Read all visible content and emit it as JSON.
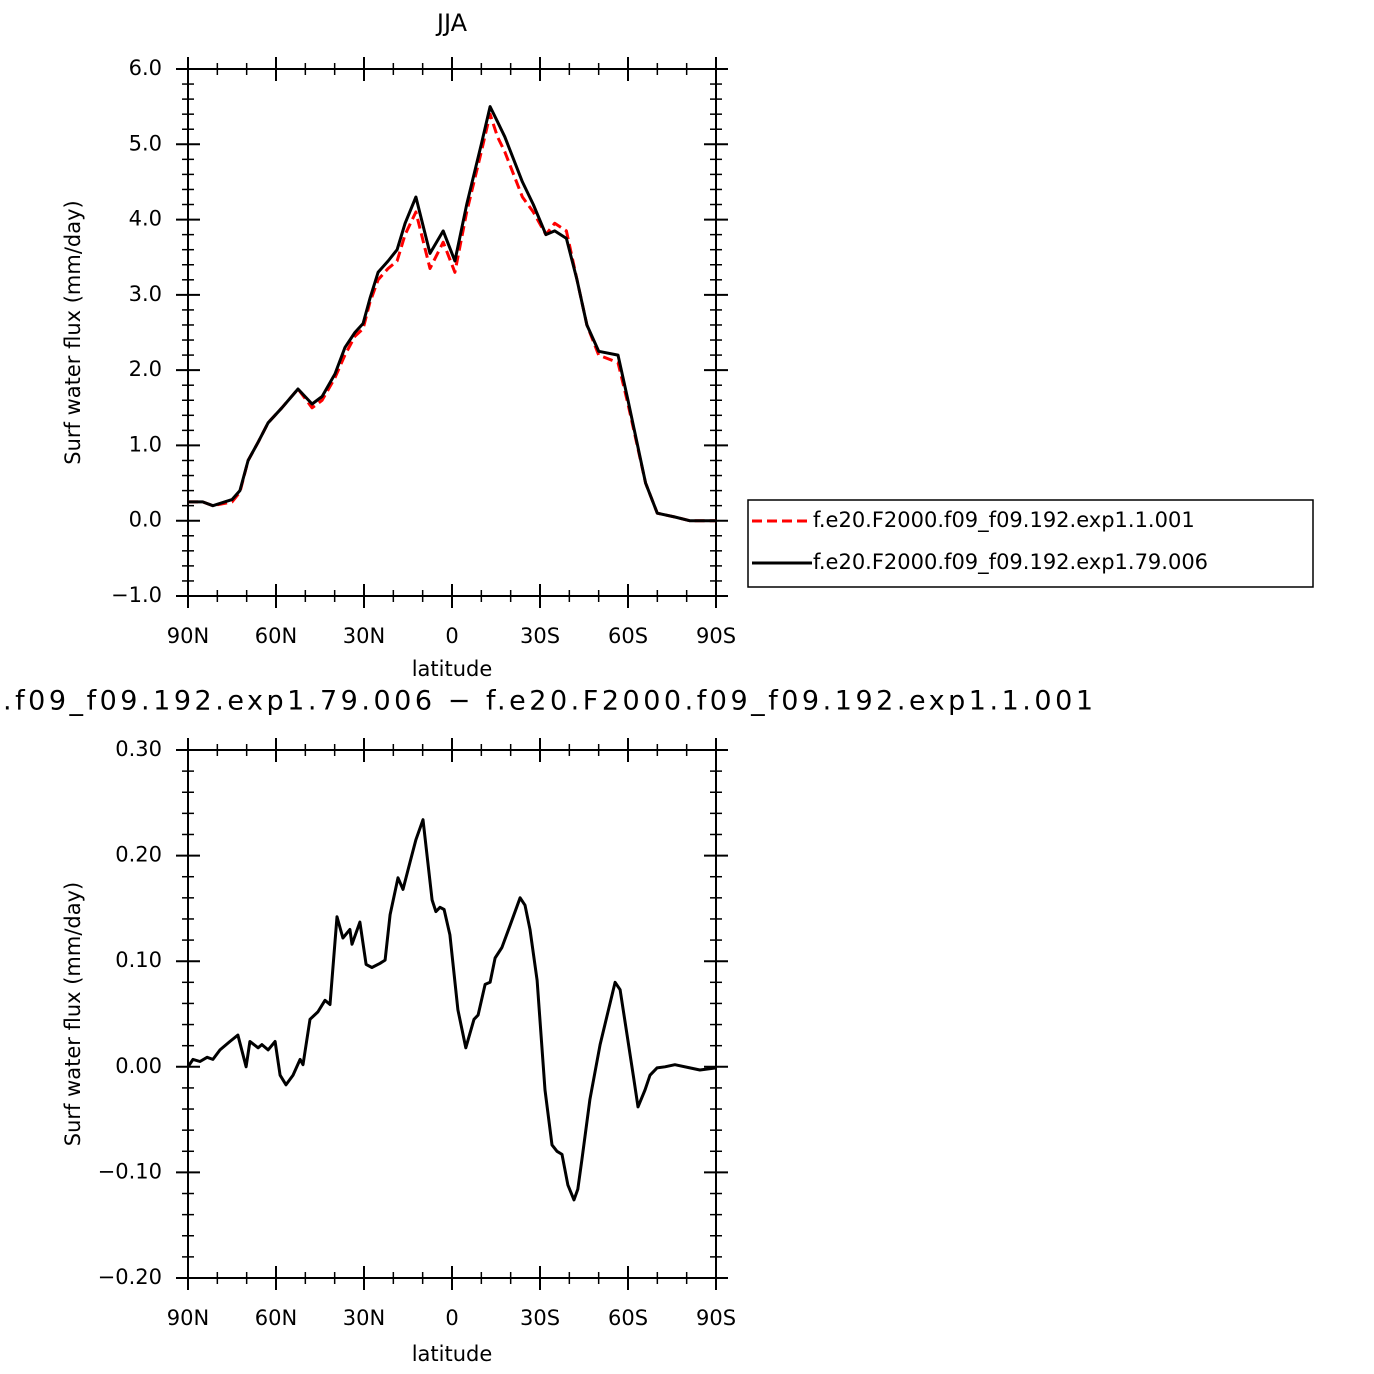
{
  "chart_data": [
    {
      "type": "line",
      "title": "JJA",
      "x": [
        90,
        85,
        81.5,
        75,
        72.3,
        69.5,
        66,
        62.7,
        58,
        52.5,
        47.7,
        44.3,
        39.9,
        36.5,
        33.1,
        30.3,
        28,
        25.2,
        21.8,
        18.7,
        16,
        12.3,
        7.5,
        3,
        -1,
        -5,
        -10,
        -13,
        -15.5,
        -18,
        -24,
        -27.7,
        -32,
        -35,
        -39,
        -42.6,
        -46,
        -50,
        -56.6,
        -60,
        -66,
        -70,
        -76,
        -81,
        -90
      ],
      "series": [
        {
          "name": "f.e20.F2000.f09_f09.192.exp1.1.001",
          "color": "#ff0000",
          "dash": "dashed",
          "values": [
            0.25,
            0.25,
            0.2,
            0.25,
            0.38,
            0.8,
            1.05,
            1.3,
            1.5,
            1.75,
            1.5,
            1.6,
            1.9,
            2.2,
            2.45,
            2.55,
            2.9,
            3.2,
            3.35,
            3.45,
            3.8,
            4.1,
            3.35,
            3.7,
            3.3,
            4.1,
            4.9,
            5.4,
            5.1,
            4.9,
            4.3,
            4.1,
            3.8,
            3.95,
            3.85,
            3.2,
            2.6,
            2.2,
            2.1,
            1.55,
            0.5,
            0.1,
            0.05,
            0.0,
            0.0
          ]
        },
        {
          "name": "f.e20.F2000.f09_f09.192.exp1.79.006",
          "color": "#000000",
          "dash": "solid",
          "values": [
            0.25,
            0.25,
            0.2,
            0.28,
            0.4,
            0.8,
            1.05,
            1.3,
            1.5,
            1.75,
            1.55,
            1.65,
            1.95,
            2.3,
            2.5,
            2.62,
            2.95,
            3.3,
            3.45,
            3.6,
            3.95,
            4.3,
            3.55,
            3.85,
            3.45,
            4.2,
            5.0,
            5.5,
            5.3,
            5.1,
            4.5,
            4.2,
            3.8,
            3.85,
            3.75,
            3.2,
            2.6,
            2.25,
            2.2,
            1.6,
            0.5,
            0.1,
            0.05,
            0.0,
            0.0
          ]
        }
      ],
      "xlim": [
        90,
        -90
      ],
      "xticks": [
        {
          "value": 90,
          "label": "90N"
        },
        {
          "value": 60,
          "label": "60N"
        },
        {
          "value": 30,
          "label": "30N"
        },
        0,
        {
          "value": -30,
          "label": "30S"
        },
        {
          "value": -60,
          "label": "60S"
        },
        {
          "value": -90,
          "label": "90S"
        }
      ],
      "ylim": [
        -1.0,
        6.0
      ],
      "yticks": [
        {
          "value": -1,
          "label": "−1.0"
        },
        {
          "value": 0,
          "label": "0.0"
        },
        {
          "value": 1,
          "label": "1.0"
        },
        {
          "value": 2,
          "label": "2.0"
        },
        {
          "value": 3,
          "label": "3.0"
        },
        {
          "value": 4,
          "label": "4.0"
        },
        {
          "value": 5,
          "label": "5.0"
        },
        {
          "value": 6,
          "label": "6.0"
        }
      ],
      "xlabel": "latitude",
      "ylabel": "Surf water flux (mm/day)",
      "legend": "right"
    },
    {
      "type": "line",
      "title": ".f09_f09.192.exp1.79.006 − f.e20.F2000.f09_f09.192.exp1.1.001",
      "x": [
        90,
        88.3,
        85.9,
        83.5,
        81.5,
        79.1,
        75.7,
        73,
        70.2,
        68.9,
        66.1,
        64.8,
        62.7,
        60.3,
        58.6,
        56.6,
        54.2,
        51.8,
        50.8,
        48.4,
        45.7,
        43.3,
        41.6,
        39.2,
        37.2,
        34.8,
        34.1,
        31.4,
        29.3,
        27.3,
        24.5,
        22.8,
        21.1,
        18.4,
        16.7,
        14.3,
        12.3,
        9.9,
        6.8,
        5.5,
        4.1,
        2.7,
        0.7,
        -2,
        -4.7,
        -7.5,
        -8.9,
        -11.3,
        -13,
        -14.7,
        -17,
        -19.8,
        -23.2,
        -24.9,
        -26.6,
        -29,
        -31.7,
        -34.1,
        -35.8,
        -37.5,
        -39.5,
        -41.6,
        -42.9,
        -44.3,
        -47,
        -50.5,
        -55.6,
        -57.3,
        -59.7,
        -62,
        -63.4,
        -65.8,
        -67.5,
        -69.9,
        -72.6,
        -76,
        -81.1,
        -84.5,
        -90
      ],
      "values": [
        0,
        0.007,
        0.005,
        0.009,
        0.007,
        0.016,
        0.024,
        0.03,
        0,
        0.024,
        0.018,
        0.021,
        0.016,
        0.024,
        -0.008,
        -0.017,
        -0.008,
        0.007,
        0.002,
        0.045,
        0.052,
        0.063,
        0.059,
        0.142,
        0.122,
        0.13,
        0.116,
        0.137,
        0.097,
        0.094,
        0.098,
        0.101,
        0.144,
        0.179,
        0.168,
        0.194,
        0.215,
        0.234,
        0.158,
        0.147,
        0.151,
        0.149,
        0.125,
        0.054,
        0.018,
        0.045,
        0.049,
        0.078,
        0.08,
        0.103,
        0.113,
        0.134,
        0.16,
        0.153,
        0.13,
        0.082,
        -0.022,
        -0.074,
        -0.08,
        -0.083,
        -0.112,
        -0.126,
        -0.116,
        -0.088,
        -0.031,
        0.021,
        0.08,
        0.073,
        0.03,
        -0.012,
        -0.038,
        -0.022,
        -0.008,
        -0.001,
        0,
        0.002,
        -0.001,
        -0.003,
        -0.001
      ],
      "color": "#000000",
      "xlim": [
        90,
        -90
      ],
      "xticks": [
        {
          "value": 90,
          "label": "90N"
        },
        {
          "value": 60,
          "label": "60N"
        },
        {
          "value": 30,
          "label": "30N"
        },
        0,
        {
          "value": -30,
          "label": "30S"
        },
        {
          "value": -60,
          "label": "60S"
        },
        {
          "value": -90,
          "label": "90S"
        }
      ],
      "ylim": [
        -0.2,
        0.3
      ],
      "yticks": [
        {
          "value": -0.2,
          "label": "−0.20"
        },
        {
          "value": -0.1,
          "label": "−0.10"
        },
        {
          "value": 0,
          "label": "0.00"
        },
        {
          "value": 0.1,
          "label": "0.10"
        },
        {
          "value": 0.2,
          "label": "0.20"
        },
        {
          "value": 0.3,
          "label": "0.30"
        }
      ],
      "xlabel": "latitude",
      "ylabel": "Surf water flux (mm/day)"
    }
  ]
}
